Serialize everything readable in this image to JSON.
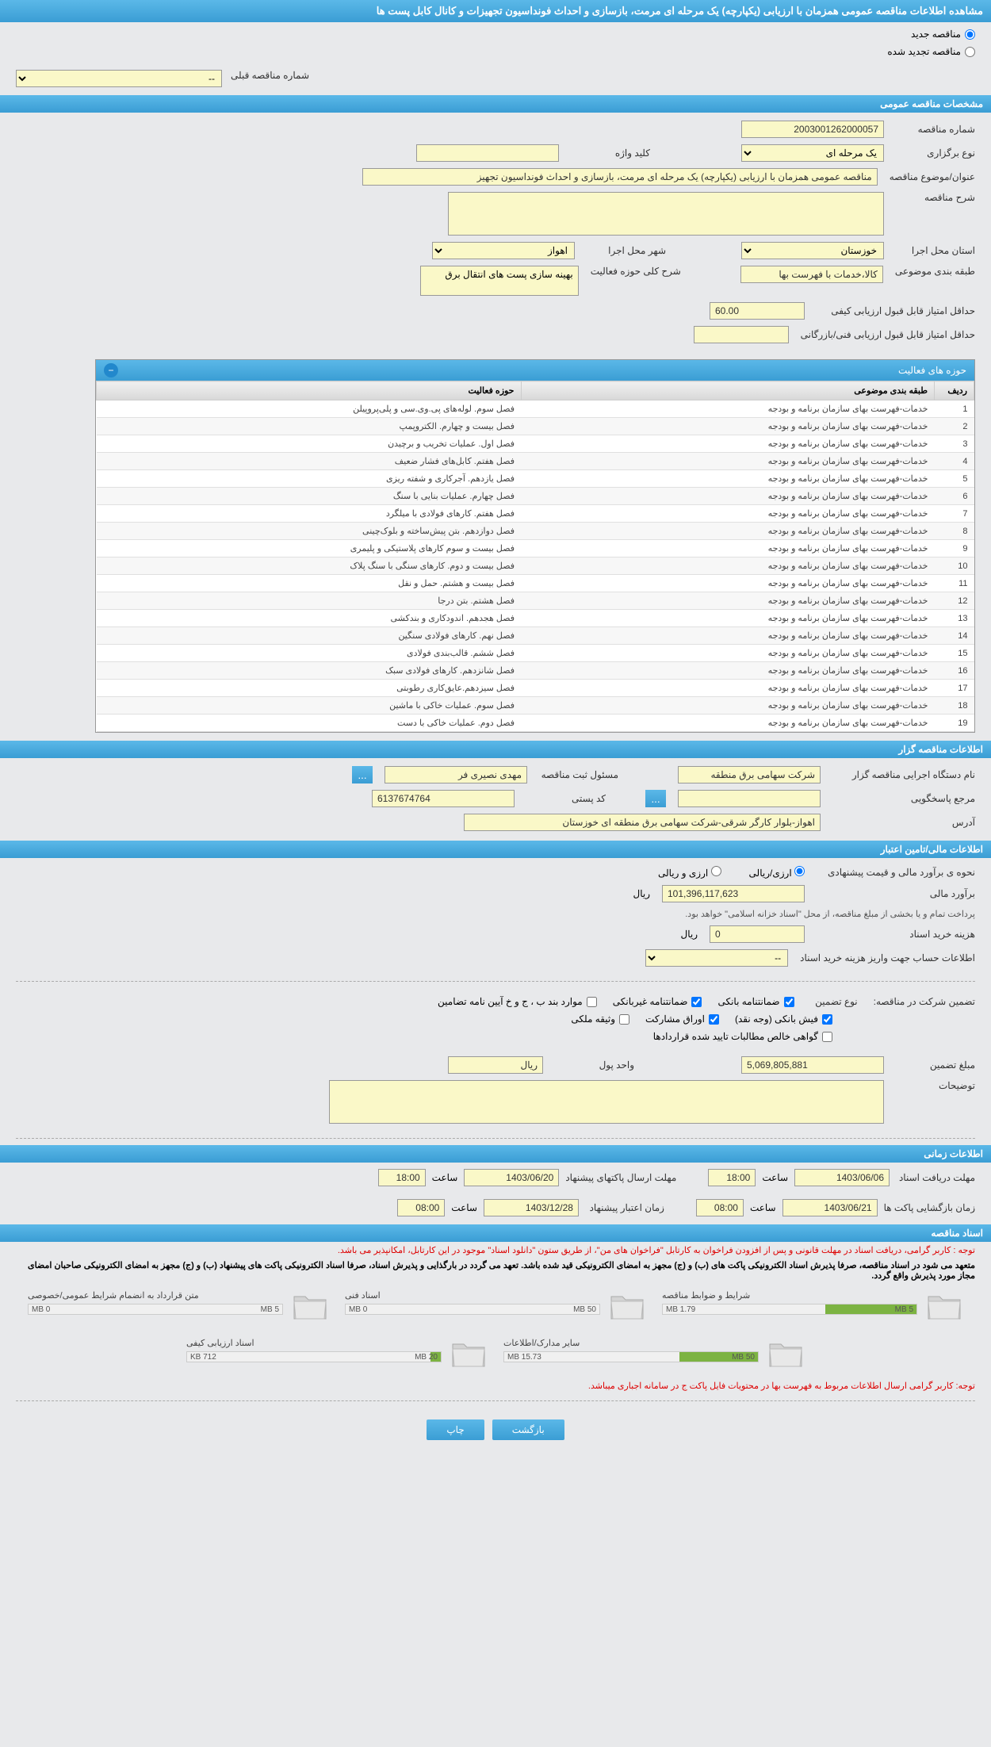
{
  "header": {
    "title": "مشاهده اطلاعات مناقصه عمومی همزمان با ارزیابی (یکپارچه) یک مرحله ای مرمت، بازسازی و احداث فونداسیون تجهیزات و کانال کابل پست ها"
  },
  "radios": {
    "new_label": "مناقصه جدید",
    "renewed_label": "مناقصه تجدید شده",
    "prev_number_label": "شماره مناقصه قبلی",
    "prev_placeholder": "--"
  },
  "sections": {
    "general": "مشخصات مناقصه عمومی",
    "org": "اطلاعات مناقصه گزار",
    "finance": "اطلاعات مالی/تامین اعتبار",
    "timing": "اطلاعات زمانی",
    "docs": "اسناد مناقصه"
  },
  "general": {
    "tender_number_label": "شماره مناقصه",
    "tender_number": "2003001262000057",
    "type_label": "نوع برگزاری",
    "type_value": "یک مرحله ای",
    "subject_label": "عنوان/موضوع مناقصه",
    "subject_value": "مناقصه عمومی همزمان با ارزیابی (یکپارچه) یک مرحله ای مرمت، بازسازی و احداث فونداسیون تجهیز",
    "keyword_label": "کلید واژه",
    "desc_label": "شرح مناقصه",
    "province_label": "استان محل اجرا",
    "province_value": "خوزستان",
    "city_label": "شهر محل اجرا",
    "city_value": "اهواز",
    "category_label": "طبقه بندی موضوعی",
    "category_value": "کالا،خدمات با فهرست بها",
    "activity_summary_label": "شرح کلی حوزه فعالیت",
    "activity_summary_value": "بهینه سازی پست های انتقال برق",
    "min_quality_label": "حداقل امتیاز قابل قبول ارزیابی کیفی",
    "min_quality_value": "60.00",
    "min_tech_label": "حداقل امتیاز قابل قبول ارزیابی فنی/بازرگانی"
  },
  "activities": {
    "title": "حوزه های فعالیت",
    "columns": {
      "row": "ردیف",
      "category": "طبقه بندی موضوعی",
      "area": "حوزه فعالیت"
    },
    "rows": [
      {
        "n": "1",
        "cat": "خدمات-فهرست بهای سازمان برنامه و بودجه",
        "area": "فصل سوم. لوله‌های پی.وی.سی و پلی‌پروپیلن"
      },
      {
        "n": "2",
        "cat": "خدمات-فهرست بهای سازمان برنامه و بودجه",
        "area": "فصل بیست و چهارم. الکتروپمپ"
      },
      {
        "n": "3",
        "cat": "خدمات-فهرست بهای سازمان برنامه و بودجه",
        "area": "فصل اول. عملیات تخریب و برچیدن"
      },
      {
        "n": "4",
        "cat": "خدمات-فهرست بهای سازمان برنامه و بودجه",
        "area": "فصل هفتم. کابل‌های فشار ضعیف"
      },
      {
        "n": "5",
        "cat": "خدمات-فهرست بهای سازمان برنامه و بودجه",
        "area": "فصل یازدهم. آجرکاری و شفته ریزی"
      },
      {
        "n": "6",
        "cat": "خدمات-فهرست بهای سازمان برنامه و بودجه",
        "area": "فصل چهارم. عملیات بنایی با سنگ"
      },
      {
        "n": "7",
        "cat": "خدمات-فهرست بهای سازمان برنامه و بودجه",
        "area": "فصل هفتم. کارهای فولادی با میلگرد"
      },
      {
        "n": "8",
        "cat": "خدمات-فهرست بهای سازمان برنامه و بودجه",
        "area": "فصل دوازدهم. بتن پیش‌ساخته و بلوک‌چینی"
      },
      {
        "n": "9",
        "cat": "خدمات-فهرست بهای سازمان برنامه و بودجه",
        "area": "فصل بیست و سوم کارهای پلاستیکی و پلیمری"
      },
      {
        "n": "10",
        "cat": "خدمات-فهرست بهای سازمان برنامه و بودجه",
        "area": "فصل بیست و دوم. کارهای سنگی با سنگ پلاک"
      },
      {
        "n": "11",
        "cat": "خدمات-فهرست بهای سازمان برنامه و بودجه",
        "area": "فصل بیست و هشتم. حمل و نقل"
      },
      {
        "n": "12",
        "cat": "خدمات-فهرست بهای سازمان برنامه و بودجه",
        "area": "فصل هشتم. بتن درجا"
      },
      {
        "n": "13",
        "cat": "خدمات-فهرست بهای سازمان برنامه و بودجه",
        "area": "فصل هجدهم. اندودکاری و بندکشی"
      },
      {
        "n": "14",
        "cat": "خدمات-فهرست بهای سازمان برنامه و بودجه",
        "area": "فصل نهم. کارهای فولادی سنگین"
      },
      {
        "n": "15",
        "cat": "خدمات-فهرست بهای سازمان برنامه و بودجه",
        "area": "فصل ششم. قالب‌بندی فولادی"
      },
      {
        "n": "16",
        "cat": "خدمات-فهرست بهای سازمان برنامه و بودجه",
        "area": "فصل شانزدهم. کارهای فولادی سبک"
      },
      {
        "n": "17",
        "cat": "خدمات-فهرست بهای سازمان برنامه و بودجه",
        "area": "فصل سیزدهم.عایق‌کاری رطوبتی"
      },
      {
        "n": "18",
        "cat": "خدمات-فهرست بهای سازمان برنامه و بودجه",
        "area": "فصل سوم. عملیات خاکی با ماشین"
      },
      {
        "n": "19",
        "cat": "خدمات-فهرست بهای سازمان برنامه و بودجه",
        "area": "فصل دوم. عملیات خاکی با دست"
      }
    ]
  },
  "org": {
    "exec_label": "نام دستگاه اجرایی مناقصه گزار",
    "exec_value": "شرکت سهامی برق منطقه",
    "registrar_label": "مسئول ثبت مناقصه",
    "registrar_value": "مهدی نصیری فر",
    "responder_label": "مرجع پاسخگویی",
    "postal_label": "کد پستی",
    "postal_value": "6137674764",
    "address_label": "آدرس",
    "address_value": "اهواز-بلوار کارگر شرقی-شرکت سهامی برق منطقه ای خوزستان"
  },
  "finance": {
    "estimate_method_label": "نحوه ی برآورد مالی و قیمت پیشنهادی",
    "opt_rial": "ارزی/ریالی",
    "opt_currency": "ارزی و ریالی",
    "estimate_label": "برآورد مالی",
    "estimate_value": "101,396,117,623",
    "rial": "ریال",
    "treasury_note": "پرداخت تمام و یا بخشی از مبلغ مناقصه، از محل \"اسناد خزانه اسلامی\" خواهد بود.",
    "doc_fee_label": "هزینه خرید اسناد",
    "doc_fee_value": "0",
    "account_label": "اطلاعات حساب جهت واریز هزینه خرید اسناد",
    "account_placeholder": "--",
    "guarantee_label": "تضمین شرکت در مناقصه:",
    "guarantee_type_label": "نوع تضمین",
    "chk_bank": "ضمانتنامه بانکی",
    "chk_nonbank": "ضمانتنامه غیربانکی",
    "chk_items": "موارد بند ب ، ج و خ آیین نامه تضامین",
    "chk_cash": "فیش بانکی (وجه نقد)",
    "chk_bonds": "اوراق مشارکت",
    "chk_deed": "وثیقه ملکی",
    "chk_claims": "گواهی خالص مطالبات تایید شده قراردادها",
    "guarantee_amount_label": "مبلغ تضمین",
    "guarantee_amount_value": "5,069,805,881",
    "money_unit_label": "واحد پول",
    "money_unit_value": "ریال",
    "notes_label": "توضیحات"
  },
  "timing": {
    "receive_label": "مهلت دریافت اسناد",
    "receive_date": "1403/06/06",
    "receive_time_label": "ساعت",
    "receive_time": "18:00",
    "send_label": "مهلت ارسال پاکتهای پیشنهاد",
    "send_date": "1403/06/20",
    "send_time": "18:00",
    "open_label": "زمان بازگشایی پاکت ها",
    "open_date": "1403/06/21",
    "open_time": "08:00",
    "validity_label": "زمان اعتبار پیشنهاد",
    "validity_date": "1403/12/28",
    "validity_time": "08:00"
  },
  "docs": {
    "note1": "توجه : کاربر گرامی، دریافت اسناد در مهلت قانونی و پس از افزودن فراخوان به کارتابل \"فراخوان های من\"، از طریق ستون \"دانلود اسناد\" موجود در این کارتابل، امکانپذیر می باشد.",
    "note2": "متعهد می شود در اسناد مناقصه، صرفا پذیرش اسناد الکترونیکی پاکت های (ب) و (ج) مجهز به امضای الکترونیکی قید شده باشد. تعهد می گردد در بارگذایی و پذیرش اسناد، صرفا اسناد الکترونیکی پاکت های پیشنهاد (ب) و (ج) مجهز به امضای الکترونیکی صاحبان امضای مجاز مورد پذیرش واقع گردد.",
    "items": [
      {
        "title": "شرایط و ضوابط مناقصه",
        "used": "1.79 MB",
        "total": "5 MB",
        "pct": 36
      },
      {
        "title": "اسناد فنی",
        "used": "0 MB",
        "total": "50 MB",
        "pct": 0
      },
      {
        "title": "متن قرارداد به انضمام شرایط عمومی/خصوصی",
        "used": "0 MB",
        "total": "5 MB",
        "pct": 0
      },
      {
        "title": "سایر مدارک/اطلاعات",
        "used": "15.73 MB",
        "total": "50 MB",
        "pct": 31
      },
      {
        "title": "اسناد ارزیابی کیفی",
        "used": "712 KB",
        "total": "20 MB",
        "pct": 4
      }
    ],
    "note3": "توجه: کاربر گرامی ارسال اطلاعات مربوط به فهرست بها در محتویات فایل پاکت ج در سامانه اجباری میباشد."
  },
  "buttons": {
    "back": "بازگشت",
    "print": "چاپ"
  }
}
